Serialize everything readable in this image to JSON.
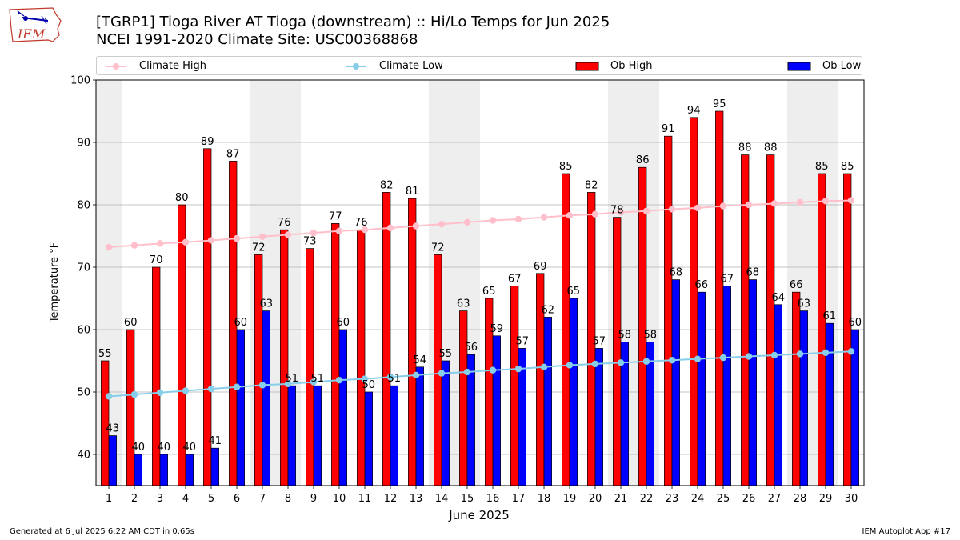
{
  "logo": {
    "text": "IEM"
  },
  "title": {
    "line1": "[TGRP1] Tioga River AT Tioga (downstream) :: Hi/Lo Temps for Jun 2025",
    "line2": "NCEI 1991-2020 Climate Site: USC00368868"
  },
  "legend": {
    "climate_high": "Climate High",
    "climate_low": "Climate Low",
    "ob_high": "Ob High",
    "ob_low": "Ob Low"
  },
  "colors": {
    "ob_high": "#ff0000",
    "ob_low": "#0000ff",
    "climate_high": "#ffc0cb",
    "climate_low": "#87ceeb",
    "weekend_band": "#eeeeee",
    "grid": "#b0b0b0"
  },
  "footer": {
    "left": "Generated at 6 Jul 2025 6:22 AM CDT in 0.65s",
    "right": "IEM Autoplot App #17"
  },
  "chart_data": {
    "type": "bar",
    "xlabel": "June 2025",
    "ylabel": "Temperature °F",
    "ylim": [
      35,
      100
    ],
    "yticks": [
      40,
      50,
      60,
      70,
      80,
      90,
      100
    ],
    "grid": true,
    "legend_position": "top",
    "categories": [
      "1",
      "2",
      "3",
      "4",
      "5",
      "6",
      "7",
      "8",
      "9",
      "10",
      "11",
      "12",
      "13",
      "14",
      "15",
      "16",
      "17",
      "18",
      "19",
      "20",
      "21",
      "22",
      "23",
      "24",
      "25",
      "26",
      "27",
      "28",
      "29",
      "30"
    ],
    "shaded_days": [
      1,
      7,
      8,
      14,
      15,
      21,
      22,
      28,
      29
    ],
    "series": [
      {
        "name": "Ob High",
        "kind": "bar",
        "values": [
          55,
          60,
          70,
          80,
          89,
          87,
          72,
          76,
          73,
          77,
          76,
          82,
          81,
          72,
          63,
          65,
          67,
          69,
          85,
          82,
          78,
          86,
          91,
          94,
          95,
          88,
          88,
          66,
          85,
          85
        ]
      },
      {
        "name": "Ob Low",
        "kind": "bar",
        "values": [
          43,
          40,
          40,
          40,
          41,
          60,
          63,
          51,
          51,
          60,
          50,
          51,
          54,
          55,
          56,
          59,
          57,
          62,
          65,
          57,
          58,
          58,
          68,
          66,
          67,
          68,
          64,
          63,
          61,
          60
        ]
      },
      {
        "name": "Climate High",
        "kind": "line",
        "values": [
          73.2,
          73.5,
          73.8,
          74.0,
          74.3,
          74.6,
          74.9,
          75.2,
          75.5,
          75.8,
          76.0,
          76.3,
          76.6,
          76.9,
          77.2,
          77.5,
          77.7,
          78.0,
          78.3,
          78.5,
          78.8,
          79.0,
          79.3,
          79.5,
          79.8,
          80.0,
          80.2,
          80.4,
          80.6,
          80.7
        ]
      },
      {
        "name": "Climate Low",
        "kind": "line",
        "values": [
          49.3,
          49.6,
          49.9,
          50.2,
          50.5,
          50.8,
          51.1,
          51.3,
          51.6,
          51.9,
          52.1,
          52.4,
          52.7,
          53.0,
          53.2,
          53.5,
          53.7,
          54.0,
          54.3,
          54.5,
          54.7,
          54.9,
          55.1,
          55.3,
          55.5,
          55.7,
          55.9,
          56.1,
          56.3,
          56.5
        ]
      }
    ]
  }
}
